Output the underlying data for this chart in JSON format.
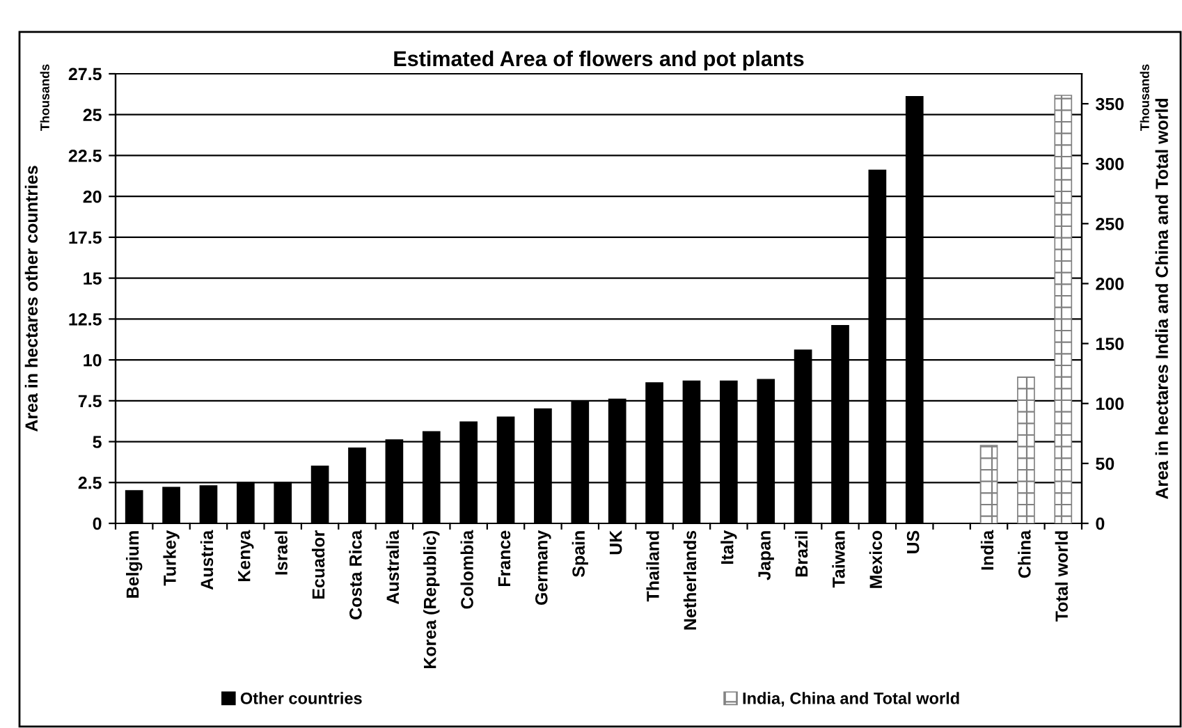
{
  "chart_data": {
    "type": "bar",
    "title": "Estimated Area of flowers and pot plants",
    "ylabel": "Area in hectares other countries",
    "y2label": "Area in hectares India and China and Total world",
    "annotations": [
      "Thousands",
      "Thousands"
    ],
    "categories": [
      "Belgium",
      "Turkey",
      "Austria",
      "Kenya",
      "Israel",
      "Ecuador",
      "Costa Rica",
      "Australia",
      "Korea (Republic)",
      "Colombia",
      "France",
      "Germany",
      "Spain",
      "UK",
      "Thailand",
      "Netherlands",
      "Italy",
      "Japan",
      "Brazil",
      "Taiwan",
      "Mexico",
      "US",
      null,
      "India",
      "China",
      "Total world"
    ],
    "series": [
      {
        "name": "Other countries",
        "color": "#000000",
        "values": [
          2.0,
          2.2,
          2.3,
          2.5,
          2.5,
          3.5,
          4.6,
          5.1,
          5.6,
          6.2,
          6.5,
          7.0,
          7.5,
          7.6,
          8.6,
          8.7,
          8.7,
          8.8,
          10.6,
          12.1,
          21.6,
          26.1,
          null,
          null,
          null,
          null
        ]
      },
      {
        "name": "India, China and Total world",
        "color": "#808080",
        "axis": "y2",
        "values": [
          null,
          null,
          null,
          null,
          null,
          null,
          null,
          null,
          null,
          null,
          null,
          null,
          null,
          null,
          null,
          null,
          null,
          null,
          null,
          null,
          null,
          null,
          null,
          65,
          122,
          357
        ]
      }
    ],
    "ylim": [
      0,
      27.5
    ],
    "yticks": [
      0,
      2.5,
      5,
      7.5,
      10,
      12.5,
      15,
      17.5,
      20,
      22.5,
      25,
      27.5
    ],
    "y2lim": [
      0,
      375
    ],
    "y2ticks": [
      0,
      50,
      100,
      150,
      200,
      250,
      300,
      350
    ],
    "grid": "y",
    "legend": "bottom"
  }
}
